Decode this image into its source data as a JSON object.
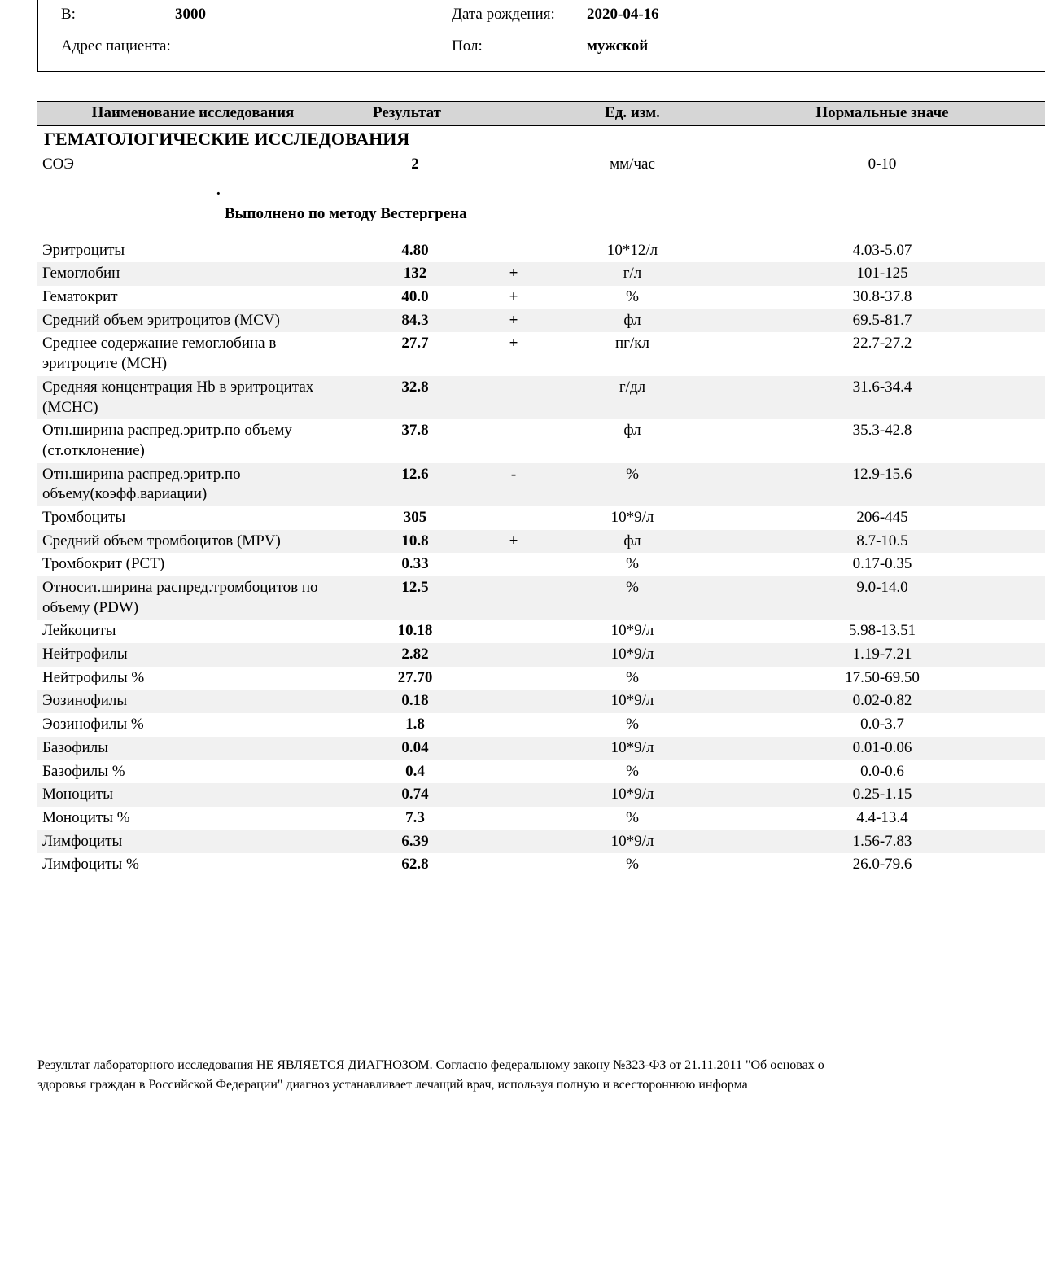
{
  "patient": {
    "b_label": "В:",
    "b_value": "3000",
    "dob_label": "Дата рождения:",
    "dob_value": "2020-04-16",
    "address_label": "Адрес пациента:",
    "address_value": "",
    "sex_label": "Пол:",
    "sex_value": "мужской"
  },
  "table": {
    "headers": {
      "name": "Наименование исследования",
      "result": "Результат",
      "unit": "Ед. изм.",
      "range": "Нормальные значе"
    },
    "section_title": "ГЕМАТОЛОГИЧЕСКИЕ ИССЛЕДОВАНИЯ",
    "soe": {
      "name": "СОЭ",
      "result": "2",
      "flag": "",
      "unit": "мм/час",
      "range": "0-10"
    },
    "note": "Выполнено по методу Вестергрена",
    "rows": [
      {
        "name": "Эритроциты",
        "result": "4.80",
        "flag": "",
        "unit": "10*12/л",
        "range": "4.03-5.07",
        "alt": false
      },
      {
        "name": "Гемоглобин",
        "result": "132",
        "flag": "+",
        "unit": "г/л",
        "range": "101-125",
        "alt": true
      },
      {
        "name": "Гематокрит",
        "result": "40.0",
        "flag": "+",
        "unit": "%",
        "range": "30.8-37.8",
        "alt": false
      },
      {
        "name": "Средний объем эритроцитов (MCV)",
        "result": "84.3",
        "flag": "+",
        "unit": "фл",
        "range": "69.5-81.7",
        "alt": true
      },
      {
        "name": "Среднее содержание гемоглобина в эритроците (MCH)",
        "result": "27.7",
        "flag": "+",
        "unit": "пг/кл",
        "range": "22.7-27.2",
        "alt": false
      },
      {
        "name": "Средняя концентрация Hb в эритроцитах (MCHC)",
        "result": "32.8",
        "flag": "",
        "unit": "г/дл",
        "range": "31.6-34.4",
        "alt": true
      },
      {
        "name": "Отн.ширина распред.эритр.по объему (ст.отклонение)",
        "result": "37.8",
        "flag": "",
        "unit": "фл",
        "range": "35.3-42.8",
        "alt": false
      },
      {
        "name": "Отн.ширина распред.эритр.по объему(коэфф.вариации)",
        "result": "12.6",
        "flag": "-",
        "unit": "%",
        "range": "12.9-15.6",
        "alt": true
      },
      {
        "name": "Тромбоциты",
        "result": "305",
        "flag": "",
        "unit": "10*9/л",
        "range": "206-445",
        "alt": false
      },
      {
        "name": "Средний объем тромбоцитов (MPV)",
        "result": "10.8",
        "flag": "+",
        "unit": "фл",
        "range": "8.7-10.5",
        "alt": true
      },
      {
        "name": "Тромбокрит (PCT)",
        "result": "0.33",
        "flag": "",
        "unit": "%",
        "range": "0.17-0.35",
        "alt": false
      },
      {
        "name": "Относит.ширина распред.тромбоцитов по объему (PDW)",
        "result": "12.5",
        "flag": "",
        "unit": "%",
        "range": "9.0-14.0",
        "alt": true
      },
      {
        "name": "Лейкоциты",
        "result": "10.18",
        "flag": "",
        "unit": "10*9/л",
        "range": "5.98-13.51",
        "alt": false
      },
      {
        "name": "Нейтрофилы",
        "result": "2.82",
        "flag": "",
        "unit": "10*9/л",
        "range": "1.19-7.21",
        "alt": true
      },
      {
        "name": "Нейтрофилы %",
        "result": "27.70",
        "flag": "",
        "unit": "%",
        "range": "17.50-69.50",
        "alt": false
      },
      {
        "name": "Эозинофилы",
        "result": "0.18",
        "flag": "",
        "unit": "10*9/л",
        "range": "0.02-0.82",
        "alt": true
      },
      {
        "name": "Эозинофилы %",
        "result": "1.8",
        "flag": "",
        "unit": "%",
        "range": "0.0-3.7",
        "alt": false
      },
      {
        "name": "Базофилы",
        "result": "0.04",
        "flag": "",
        "unit": "10*9/л",
        "range": "0.01-0.06",
        "alt": true
      },
      {
        "name": "Базофилы %",
        "result": "0.4",
        "flag": "",
        "unit": "%",
        "range": "0.0-0.6",
        "alt": false
      },
      {
        "name": "Моноциты",
        "result": "0.74",
        "flag": "",
        "unit": "10*9/л",
        "range": "0.25-1.15",
        "alt": true
      },
      {
        "name": "Моноциты %",
        "result": "7.3",
        "flag": "",
        "unit": "%",
        "range": "4.4-13.4",
        "alt": false
      },
      {
        "name": "Лимфоциты",
        "result": "6.39",
        "flag": "",
        "unit": "10*9/л",
        "range": "1.56-7.83",
        "alt": true
      },
      {
        "name": "Лимфоциты %",
        "result": "62.8",
        "flag": "",
        "unit": "%",
        "range": "26.0-79.6",
        "alt": false
      }
    ]
  },
  "footer": {
    "line1": "Результат лабораторного исследования НЕ ЯВЛЯЕТСЯ ДИАГНОЗОМ. Согласно федеральному закону №323-ФЗ от 21.11.2011 \"Об основах о",
    "line2": "здоровья граждан в Российской Федерации\" диагноз устанавливает лечащий врач, используя полную и всестороннюю информа"
  }
}
